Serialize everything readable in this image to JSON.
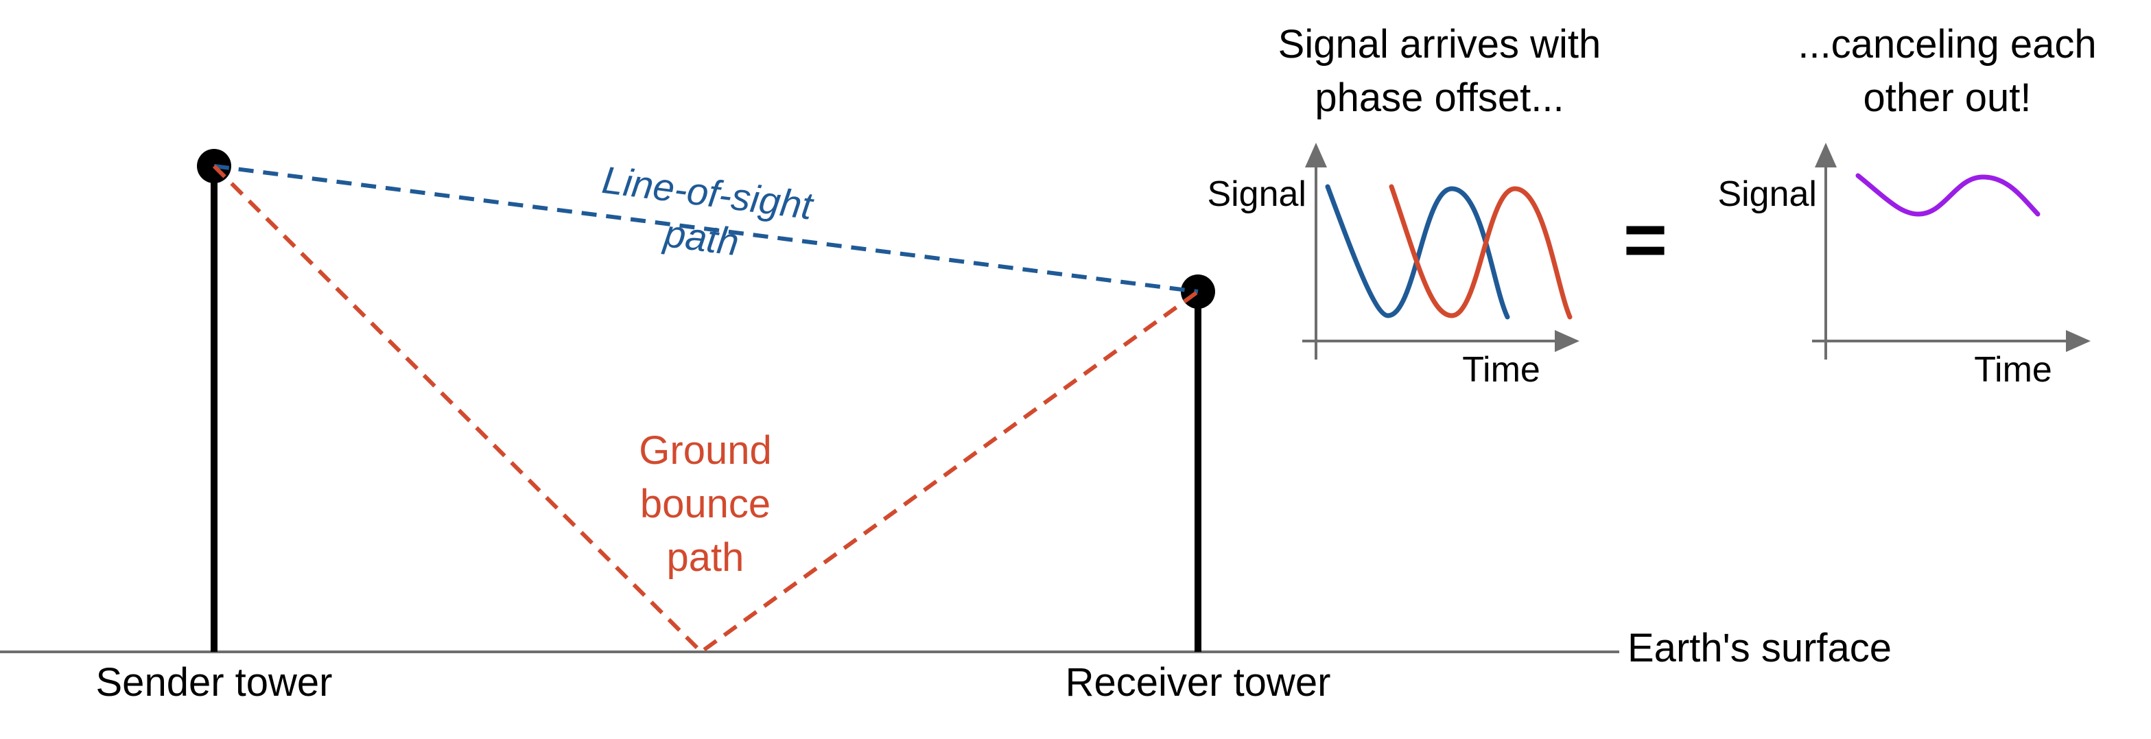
{
  "colors": {
    "line_of_sight": "#1f5a96",
    "ground_bounce": "#d24a2e",
    "combined": "#9b1ee6",
    "ink": "#000000",
    "axis": "#6e6e6e"
  },
  "ground": {
    "label": "Earth's surface"
  },
  "towers": {
    "sender": {
      "label": "Sender tower"
    },
    "receiver": {
      "label": "Receiver tower"
    }
  },
  "paths": {
    "line_of_sight": {
      "label_line1": "Line-of-sight",
      "label_line2": "path"
    },
    "ground_bounce": {
      "label_line1": "Ground",
      "label_line2": "bounce",
      "label_line3": "path"
    }
  },
  "panels": {
    "left": {
      "caption_line1": "Signal arrives with",
      "caption_line2": "phase offset...",
      "y_label": "Signal",
      "x_label": "Time"
    },
    "equals": "=",
    "right": {
      "caption_line1": "...canceling each",
      "caption_line2": "other out!",
      "y_label": "Signal",
      "x_label": "Time"
    }
  }
}
